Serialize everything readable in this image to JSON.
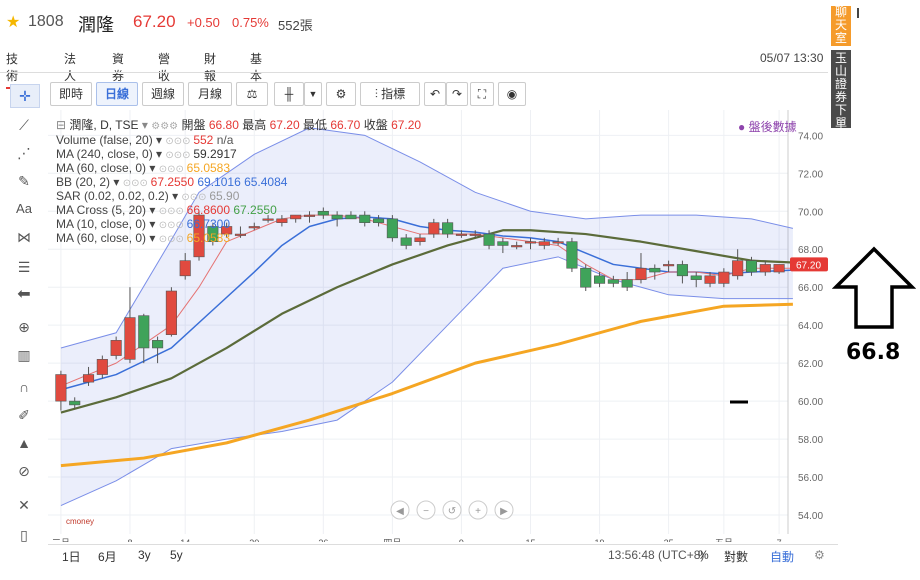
{
  "stock": {
    "code": "1808",
    "name": "潤隆",
    "price": "67.20",
    "change": "+0.50",
    "change_pct": "0.75%",
    "volume": "552張",
    "colors": {
      "up": "#e53935",
      "down": "#43a047"
    }
  },
  "tabs": [
    "技術",
    "法人",
    "資券",
    "營收",
    "財報",
    "基本"
  ],
  "active_tab": "技術",
  "datetime": "05/07 13:30",
  "side": {
    "chat": "聊天室",
    "broker": "玉山證券下單"
  },
  "annotation": {
    "value": "66.8"
  },
  "chart_toolbar": {
    "intraday": "即時",
    "daily": "日線",
    "weekly": "週線",
    "monthly": "月線",
    "indicators": "指標"
  },
  "left_toolbar_icons": [
    "crosshair-icon",
    "trend-line-icon",
    "fork-icon",
    "brush-icon",
    "text-icon",
    "pattern-icon",
    "fibonacci-icon",
    "arrow-left-icon",
    "zoom-icon",
    "measure-icon",
    "magnet-icon",
    "pencil-lock-icon",
    "lock-icon",
    "eye-off-icon",
    "cross-tools-icon",
    "trash-icon"
  ],
  "legend": {
    "title": "潤隆, D, TSE",
    "ohlc_labels": {
      "open": "開盤",
      "high": "最高",
      "low": "最低",
      "close": "收盤"
    },
    "ohlc": {
      "open": "66.80",
      "high": "67.20",
      "low": "66.70",
      "close": "67.20"
    },
    "post_market": "盤後數據",
    "rows": [
      {
        "name": "Volume (false, 20)",
        "vals": [
          "552",
          "n/a"
        ],
        "colors": [
          "#e53935",
          "#555"
        ]
      },
      {
        "name": "MA (240, close, 0)",
        "vals": [
          "59.2917"
        ],
        "colors": [
          "#333"
        ]
      },
      {
        "name": "MA (60, close, 0)",
        "vals": [
          "65.0583"
        ],
        "colors": [
          "#f5a623"
        ]
      },
      {
        "name": "BB (20, 2)",
        "vals": [
          "67.2550",
          "69.1016",
          "65.4084"
        ],
        "colors": [
          "#e53935",
          "#3a6fd8",
          "#3a6fd8"
        ]
      },
      {
        "name": "SAR (0.02, 0.02, 0.2)",
        "vals": [
          "65.90"
        ],
        "colors": [
          "#999"
        ]
      },
      {
        "name": "MA Cross (5, 20)",
        "vals": [
          "66.8600",
          "67.2550"
        ],
        "colors": [
          "#e53935",
          "#43a047"
        ]
      },
      {
        "name": "MA (10, close, 0)",
        "vals": [
          "66.7300"
        ],
        "colors": [
          "#3a6fd8"
        ]
      },
      {
        "name": "MA (60, close, 0)",
        "vals": [
          "65.0583"
        ],
        "colors": [
          "#f5a623"
        ]
      }
    ]
  },
  "chart_data": {
    "type": "candlestick",
    "price_axis": {
      "min": 53,
      "max": 75,
      "ticks": [
        54,
        56,
        58,
        60,
        62,
        64,
        66,
        68,
        70,
        72,
        74
      ]
    },
    "x_labels": [
      {
        "i": 0,
        "label": "三月"
      },
      {
        "i": 5,
        "label": "8"
      },
      {
        "i": 9,
        "label": "14"
      },
      {
        "i": 14,
        "label": "20"
      },
      {
        "i": 19,
        "label": "26"
      },
      {
        "i": 24,
        "label": "四月"
      },
      {
        "i": 29,
        "label": "9"
      },
      {
        "i": 34,
        "label": "15"
      },
      {
        "i": 39,
        "label": "19"
      },
      {
        "i": 44,
        "label": "25"
      },
      {
        "i": 48,
        "label": "五月"
      },
      {
        "i": 52,
        "label": "7"
      }
    ],
    "candles": [
      {
        "o": 60.0,
        "c": 61.4,
        "h": 61.6,
        "l": 59.5,
        "v": 80
      },
      {
        "o": 60.0,
        "c": 59.8,
        "h": 60.2,
        "l": 59.6,
        "v": 40
      },
      {
        "o": 61.0,
        "c": 61.4,
        "h": 61.8,
        "l": 60.8,
        "v": 60
      },
      {
        "o": 61.4,
        "c": 62.2,
        "h": 62.4,
        "l": 61.2,
        "v": 70
      },
      {
        "o": 62.4,
        "c": 63.2,
        "h": 63.4,
        "l": 62.2,
        "v": 110
      },
      {
        "o": 62.2,
        "c": 64.4,
        "h": 66.0,
        "l": 62.0,
        "v": 420
      },
      {
        "o": 64.5,
        "c": 62.8,
        "h": 64.6,
        "l": 62.0,
        "v": 720
      },
      {
        "o": 63.2,
        "c": 62.8,
        "h": 63.4,
        "l": 62.0,
        "v": 220
      },
      {
        "o": 63.5,
        "c": 65.8,
        "h": 66.0,
        "l": 63.4,
        "v": 300
      },
      {
        "o": 66.6,
        "c": 67.4,
        "h": 67.8,
        "l": 66.4,
        "v": 480
      },
      {
        "o": 67.6,
        "c": 69.8,
        "h": 70.0,
        "l": 67.4,
        "v": 390
      },
      {
        "o": 69.2,
        "c": 68.4,
        "h": 69.4,
        "l": 68.2,
        "v": 280
      },
      {
        "o": 68.8,
        "c": 69.2,
        "h": 69.4,
        "l": 68.6,
        "v": 140
      },
      {
        "o": 68.8,
        "c": 68.8,
        "h": 69.2,
        "l": 68.6,
        "v": 60
      },
      {
        "o": 69.2,
        "c": 69.2,
        "h": 69.4,
        "l": 69.0,
        "v": 40
      },
      {
        "o": 69.6,
        "c": 69.6,
        "h": 69.8,
        "l": 69.4,
        "v": 30
      },
      {
        "o": 69.4,
        "c": 69.6,
        "h": 69.8,
        "l": 69.2,
        "v": 50
      },
      {
        "o": 69.6,
        "c": 69.8,
        "h": 69.8,
        "l": 69.4,
        "v": 40
      },
      {
        "o": 69.8,
        "c": 69.8,
        "h": 70.0,
        "l": 69.4,
        "v": 30
      },
      {
        "o": 70.0,
        "c": 69.8,
        "h": 70.2,
        "l": 69.6,
        "v": 30
      },
      {
        "o": 69.8,
        "c": 69.6,
        "h": 70.0,
        "l": 69.2,
        "v": 20
      },
      {
        "o": 69.8,
        "c": 69.6,
        "h": 70.0,
        "l": 69.6,
        "v": 20
      },
      {
        "o": 69.8,
        "c": 69.4,
        "h": 70.0,
        "l": 69.2,
        "v": 30
      },
      {
        "o": 69.6,
        "c": 69.4,
        "h": 69.8,
        "l": 69.2,
        "v": 40
      },
      {
        "o": 69.6,
        "c": 68.6,
        "h": 69.8,
        "l": 68.4,
        "v": 90
      },
      {
        "o": 68.6,
        "c": 68.2,
        "h": 68.8,
        "l": 68.0,
        "v": 60
      },
      {
        "o": 68.4,
        "c": 68.6,
        "h": 68.8,
        "l": 68.2,
        "v": 30
      },
      {
        "o": 68.8,
        "c": 69.4,
        "h": 69.6,
        "l": 68.6,
        "v": 70
      },
      {
        "o": 69.4,
        "c": 68.8,
        "h": 69.6,
        "l": 68.6,
        "v": 90
      },
      {
        "o": 68.8,
        "c": 68.8,
        "h": 69.0,
        "l": 68.6,
        "v": 30
      },
      {
        "o": 68.8,
        "c": 68.8,
        "h": 69.0,
        "l": 68.6,
        "v": 20
      },
      {
        "o": 68.8,
        "c": 68.2,
        "h": 69.0,
        "l": 68.0,
        "v": 40
      },
      {
        "o": 68.4,
        "c": 68.2,
        "h": 68.6,
        "l": 67.8,
        "v": 40
      },
      {
        "o": 68.2,
        "c": 68.2,
        "h": 68.4,
        "l": 68.0,
        "v": 20
      },
      {
        "o": 68.4,
        "c": 68.4,
        "h": 68.6,
        "l": 68.0,
        "v": 20
      },
      {
        "o": 68.2,
        "c": 68.4,
        "h": 68.6,
        "l": 68.0,
        "v": 30
      },
      {
        "o": 68.4,
        "c": 68.4,
        "h": 68.6,
        "l": 68.2,
        "v": 20
      },
      {
        "o": 68.4,
        "c": 67.0,
        "h": 68.6,
        "l": 66.8,
        "v": 80
      },
      {
        "o": 67.0,
        "c": 66.0,
        "h": 67.2,
        "l": 65.8,
        "v": 100
      },
      {
        "o": 66.6,
        "c": 66.2,
        "h": 66.8,
        "l": 66.0,
        "v": 60
      },
      {
        "o": 66.4,
        "c": 66.2,
        "h": 66.6,
        "l": 66.0,
        "v": 40
      },
      {
        "o": 66.4,
        "c": 66.0,
        "h": 66.8,
        "l": 65.8,
        "v": 40
      },
      {
        "o": 66.4,
        "c": 67.0,
        "h": 67.8,
        "l": 66.2,
        "v": 70
      },
      {
        "o": 67.0,
        "c": 66.8,
        "h": 67.2,
        "l": 66.4,
        "v": 30
      },
      {
        "o": 67.2,
        "c": 67.2,
        "h": 67.4,
        "l": 66.8,
        "v": 30
      },
      {
        "o": 67.2,
        "c": 66.6,
        "h": 67.4,
        "l": 66.2,
        "v": 40
      },
      {
        "o": 66.6,
        "c": 66.4,
        "h": 66.8,
        "l": 66.0,
        "v": 30
      },
      {
        "o": 66.2,
        "c": 66.6,
        "h": 66.8,
        "l": 66.0,
        "v": 20
      },
      {
        "o": 66.2,
        "c": 66.8,
        "h": 67.0,
        "l": 66.0,
        "v": 40
      },
      {
        "o": 66.6,
        "c": 67.4,
        "h": 68.0,
        "l": 66.4,
        "v": 90
      },
      {
        "o": 67.4,
        "c": 66.8,
        "h": 67.6,
        "l": 66.6,
        "v": 60
      },
      {
        "o": 66.8,
        "c": 67.2,
        "h": 67.4,
        "l": 66.6,
        "v": 40
      },
      {
        "o": 66.8,
        "c": 67.2,
        "h": 67.2,
        "l": 66.7,
        "v": 30
      }
    ],
    "bb_upper": [
      [
        0,
        62.8
      ],
      [
        4,
        63.6
      ],
      [
        8,
        68.5
      ],
      [
        10,
        71.0
      ],
      [
        14,
        73.0
      ],
      [
        18,
        74.4
      ],
      [
        22,
        74.0
      ],
      [
        26,
        72.6
      ],
      [
        30,
        71.0
      ],
      [
        34,
        70.0
      ],
      [
        38,
        69.6
      ],
      [
        42,
        69.8
      ],
      [
        46,
        69.8
      ],
      [
        50,
        69.6
      ],
      [
        53,
        69.1
      ]
    ],
    "bb_lower": [
      [
        0,
        54.5
      ],
      [
        4,
        55.8
      ],
      [
        8,
        57.5
      ],
      [
        12,
        58.0
      ],
      [
        16,
        58.4
      ],
      [
        20,
        59.0
      ],
      [
        24,
        61.0
      ],
      [
        28,
        64.0
      ],
      [
        32,
        67.0
      ],
      [
        36,
        67.6
      ],
      [
        40,
        66.4
      ],
      [
        44,
        65.6
      ],
      [
        48,
        65.4
      ],
      [
        53,
        65.4
      ]
    ],
    "ma_red": [
      [
        0,
        60.8
      ],
      [
        4,
        62.0
      ],
      [
        6,
        63.0
      ],
      [
        8,
        64.0
      ],
      [
        10,
        66.0
      ],
      [
        12,
        68.4
      ],
      [
        14,
        69.0
      ],
      [
        16,
        69.6
      ],
      [
        18,
        69.8
      ],
      [
        20,
        69.8
      ],
      [
        22,
        69.6
      ],
      [
        24,
        69.2
      ],
      [
        26,
        68.8
      ],
      [
        28,
        68.8
      ],
      [
        30,
        68.8
      ],
      [
        32,
        68.6
      ],
      [
        34,
        68.4
      ],
      [
        36,
        68.2
      ],
      [
        38,
        67.2
      ],
      [
        40,
        66.4
      ],
      [
        42,
        66.4
      ],
      [
        44,
        66.8
      ],
      [
        46,
        66.8
      ],
      [
        48,
        66.6
      ],
      [
        50,
        67.0
      ],
      [
        53,
        67.0
      ]
    ],
    "ma_blue": [
      [
        0,
        60.6
      ],
      [
        4,
        61.4
      ],
      [
        8,
        62.8
      ],
      [
        11,
        64.8
      ],
      [
        14,
        66.8
      ],
      [
        16,
        68.2
      ],
      [
        18,
        69.2
      ],
      [
        20,
        69.6
      ],
      [
        22,
        69.7
      ],
      [
        24,
        69.6
      ],
      [
        26,
        69.2
      ],
      [
        28,
        69.0
      ],
      [
        30,
        68.9
      ],
      [
        32,
        68.7
      ],
      [
        34,
        68.6
      ],
      [
        36,
        68.4
      ],
      [
        38,
        67.8
      ],
      [
        40,
        67.2
      ],
      [
        42,
        67.0
      ],
      [
        44,
        66.8
      ],
      [
        46,
        66.8
      ],
      [
        48,
        66.7
      ],
      [
        50,
        66.8
      ],
      [
        53,
        66.9
      ]
    ],
    "ma_dark": [
      [
        0,
        59.4
      ],
      [
        4,
        60.2
      ],
      [
        8,
        61.2
      ],
      [
        12,
        62.8
      ],
      [
        16,
        64.6
      ],
      [
        20,
        66.0
      ],
      [
        24,
        67.2
      ],
      [
        28,
        68.2
      ],
      [
        32,
        69.0
      ],
      [
        34,
        69.0
      ],
      [
        38,
        68.8
      ],
      [
        42,
        68.4
      ],
      [
        46,
        67.9
      ],
      [
        50,
        67.4
      ],
      [
        53,
        67.3
      ]
    ],
    "ma_orange": [
      [
        0,
        56.6
      ],
      [
        6,
        57.0
      ],
      [
        12,
        57.8
      ],
      [
        18,
        59.0
      ],
      [
        24,
        60.4
      ],
      [
        30,
        62.0
      ],
      [
        36,
        63.0
      ],
      [
        42,
        64.2
      ],
      [
        48,
        65.0
      ],
      [
        53,
        65.1
      ]
    ],
    "last_price_label": "67.20"
  },
  "bottom": {
    "ranges": [
      "1日",
      "6月",
      "3y",
      "5y"
    ],
    "clock": "13:56:48 (UTC+8)",
    "pct": "%",
    "log": "對數",
    "auto": "自動"
  }
}
